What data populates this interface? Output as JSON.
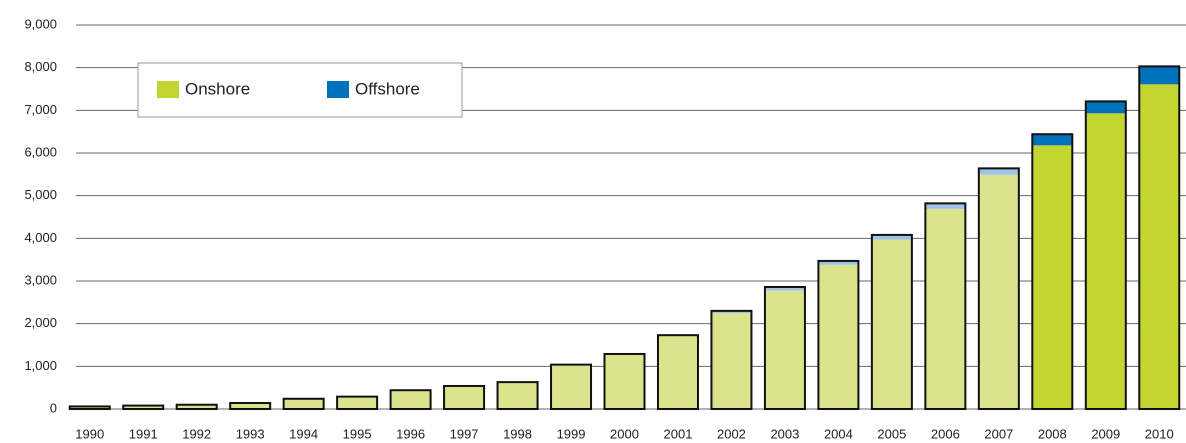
{
  "chart_data": {
    "type": "stacked-bar",
    "categories": [
      "1990",
      "1991",
      "1992",
      "1993",
      "1994",
      "1995",
      "1996",
      "1997",
      "1998",
      "1999",
      "2000",
      "2001",
      "2002",
      "2003",
      "2004",
      "2005",
      "2006",
      "2007",
      "2008",
      "2009",
      "2010"
    ],
    "series": [
      {
        "name": "Onshore",
        "color": "#c3d530",
        "colors": [
          "#dbe48c",
          "#dbe48c",
          "#dbe48c",
          "#dbe48c",
          "#dbe48c",
          "#dbe48c",
          "#dbe48c",
          "#dbe48c",
          "#dbe48c",
          "#dbe48c",
          "#dbe48c",
          "#dbe48c",
          "#dbe48c",
          "#dbe48c",
          "#dbe48c",
          "#dbe48c",
          "#dbe48c",
          "#dbe48c",
          "#c3d530",
          "#c3d530",
          "#c3d530"
        ],
        "values": [
          60,
          80,
          100,
          140,
          240,
          290,
          440,
          540,
          630,
          1040,
          1290,
          1730,
          2250,
          2780,
          3380,
          3970,
          4690,
          5490,
          6180,
          6930,
          7610
        ]
      },
      {
        "name": "Offshore",
        "color": "#0072bc",
        "colors": [
          "#9ec3e6",
          "#9ec3e6",
          "#9ec3e6",
          "#9ec3e6",
          "#9ec3e6",
          "#9ec3e6",
          "#9ec3e6",
          "#9ec3e6",
          "#9ec3e6",
          "#9ec3e6",
          "#9ec3e6",
          "#9ec3e6",
          "#9ec3e6",
          "#9ec3e6",
          "#9ec3e6",
          "#9ec3e6",
          "#9ec3e6",
          "#9ec3e6",
          "#0072bc",
          "#0072bc",
          "#0072bc"
        ],
        "values": [
          0,
          0,
          0,
          0,
          0,
          0,
          0,
          0,
          0,
          0,
          0,
          0,
          50,
          80,
          90,
          110,
          130,
          150,
          260,
          280,
          420
        ]
      }
    ],
    "ylim": [
      0,
      9000
    ],
    "yticks": [
      0,
      {
        "value": 1000,
        "label": "1,000"
      },
      {
        "value": 2000,
        "label": "2,000"
      },
      {
        "value": 3000,
        "label": "3,000"
      },
      {
        "value": 4000,
        "label": "4,000"
      },
      {
        "value": 5000,
        "label": "5,000"
      },
      {
        "value": 6000,
        "label": "6,000"
      },
      {
        "value": 7000,
        "label": "7,000"
      },
      {
        "value": 8000,
        "label": "8,000"
      },
      {
        "value": 9000,
        "label": "9,000"
      }
    ],
    "grid": true
  }
}
